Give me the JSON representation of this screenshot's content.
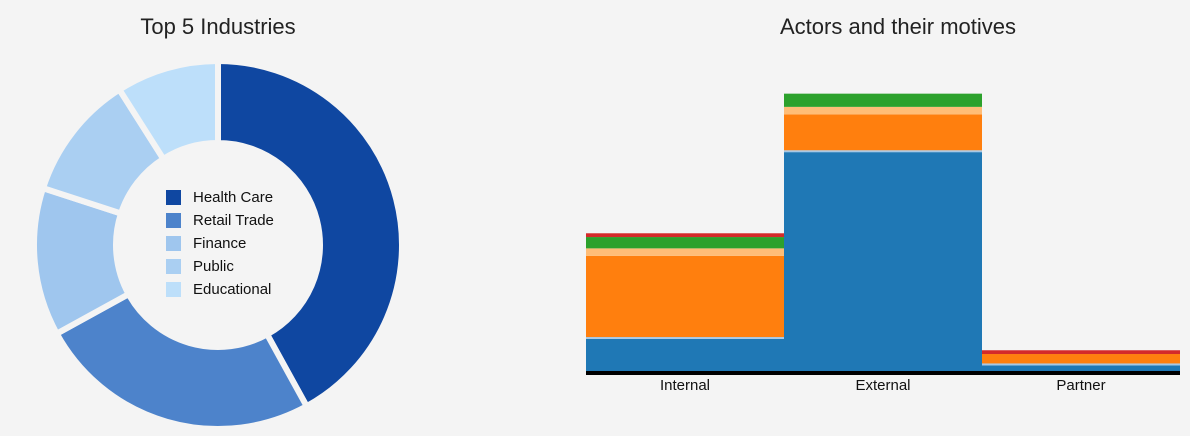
{
  "chart_data": [
    {
      "type": "pie",
      "title": "Top 5 Industries",
      "donut": true,
      "legend_position": "center",
      "categories": [
        "Health Care",
        "Retail Trade",
        "Finance",
        "Public",
        "Educational"
      ],
      "values": [
        42,
        25,
        13,
        11,
        9
      ],
      "colors": [
        "#0f47a1",
        "#4d83cb",
        "#9fc6ee",
        "#aacff2",
        "#bddffa"
      ]
    },
    {
      "type": "bar",
      "stacked": true,
      "title": "Actors and their motives",
      "categories": [
        "Internal",
        "External",
        "Partner"
      ],
      "series": [
        {
          "values": [
            17,
            116,
            3
          ],
          "color": "#1f78b5"
        },
        {
          "values": [
            1,
            1,
            1
          ],
          "color": "#a6c8e6"
        },
        {
          "values": [
            43,
            19,
            5
          ],
          "color": "#ff7f0e"
        },
        {
          "values": [
            4,
            4,
            0
          ],
          "color": "#ffbd77"
        },
        {
          "values": [
            6,
            7,
            0
          ],
          "color": "#2ca12c"
        },
        {
          "values": [
            2,
            0,
            2
          ],
          "color": "#d42a2a"
        }
      ],
      "ylim": [
        0,
        150
      ],
      "grid": false
    }
  ]
}
